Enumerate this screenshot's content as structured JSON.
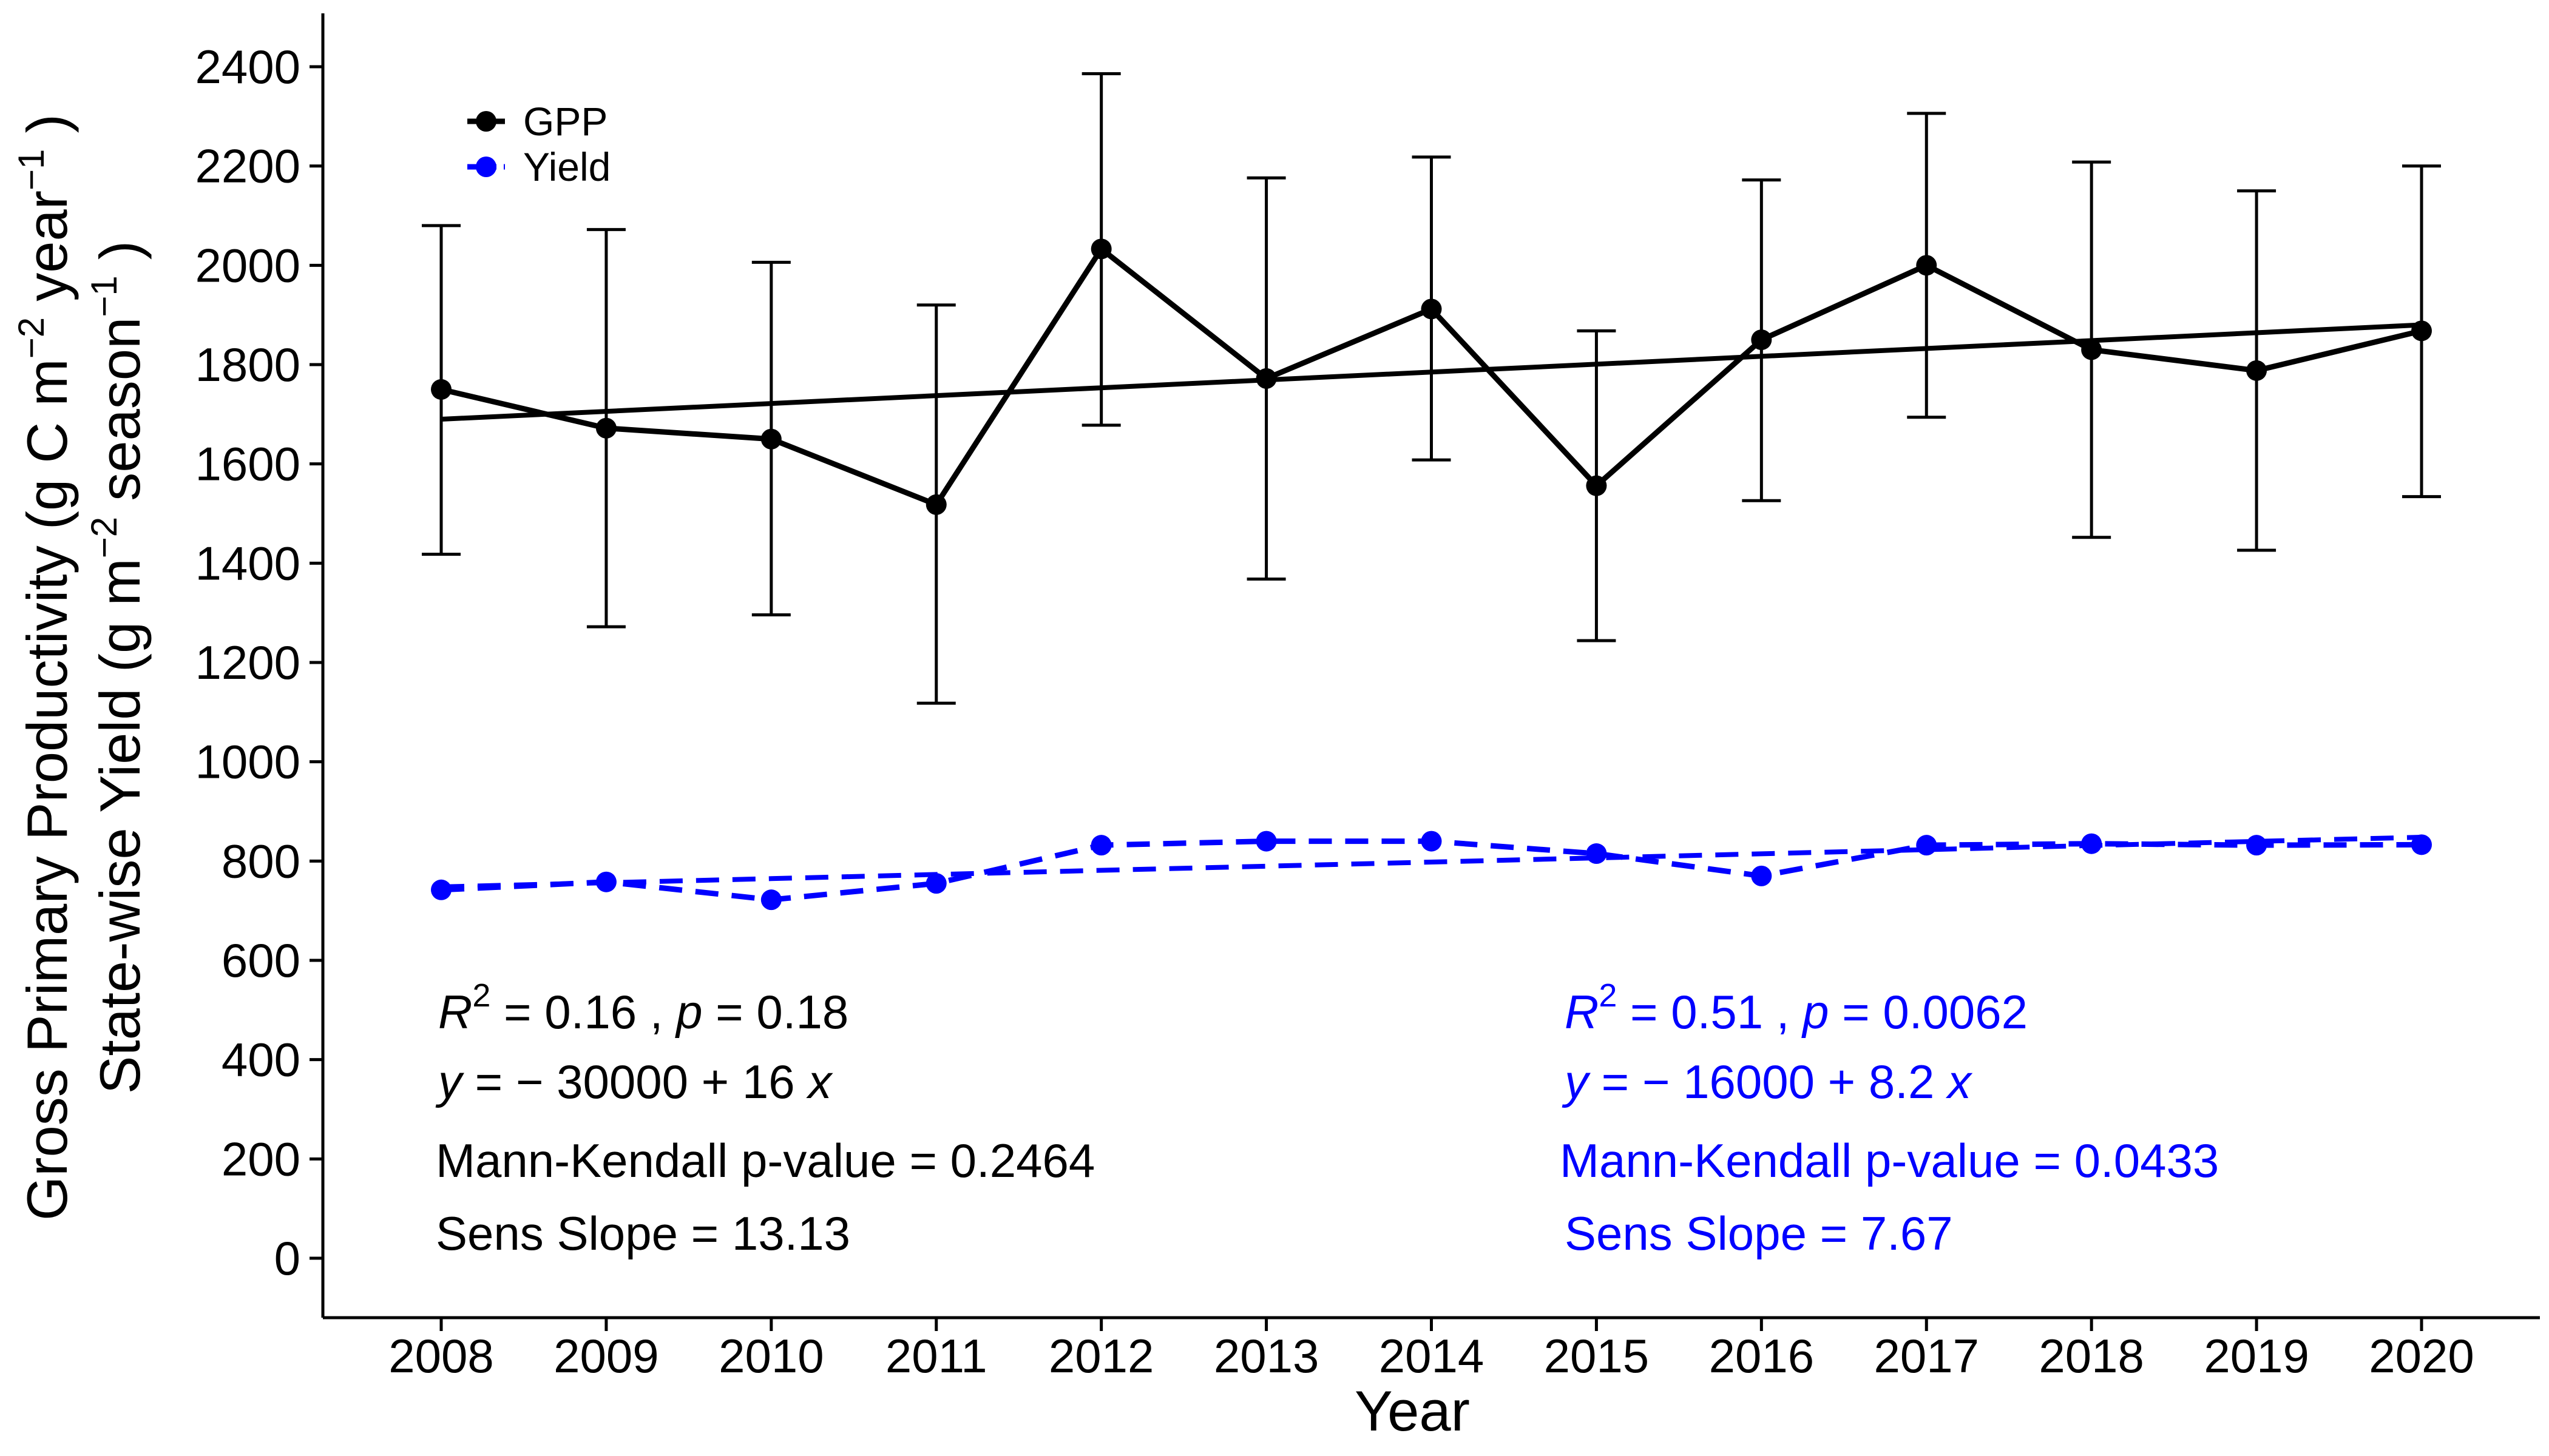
{
  "chart_data": {
    "type": "line",
    "x": [
      2008,
      2009,
      2010,
      2011,
      2012,
      2013,
      2014,
      2015,
      2016,
      2017,
      2018,
      2019,
      2020
    ],
    "xlabel": "Year",
    "ylabel_line1": "Gross Primary Productivity (g C m",
    "ylabel_line1_sup": "−2",
    "ylabel_line1_mid": " year",
    "ylabel_line1_sup2": "−1",
    "ylabel_line1_end": " )",
    "ylabel_line2": "State-wise Yield (g m",
    "ylabel_line2_sup": "−2",
    "ylabel_line2_mid": " season",
    "ylabel_line2_sup2": "−1",
    "ylabel_line2_end": " )",
    "ylim": [
      -120,
      2510
    ],
    "yticks": [
      0,
      200,
      400,
      600,
      800,
      1000,
      1200,
      1400,
      1600,
      1800,
      2000,
      2200,
      2400
    ],
    "grid": false,
    "legend_position": "top-left",
    "series": [
      {
        "name": "GPP",
        "color": "#000000",
        "linestyle": "solid",
        "values": [
          1750,
          1672,
          1650,
          1518,
          2033,
          1772,
          1912,
          1556,
          1850,
          2000,
          1830,
          1788,
          1868
        ],
        "err_low": [
          1418,
          1272,
          1296,
          1118,
          1678,
          1368,
          1608,
          1244,
          1526,
          1694,
          1452,
          1426,
          1534
        ],
        "err_high": [
          2080,
          2072,
          2006,
          1920,
          2386,
          2176,
          2218,
          1868,
          2172,
          2306,
          2208,
          2150,
          2200
        ],
        "trend": [
          1690,
          1880
        ]
      },
      {
        "name": "Yield",
        "color": "#0000ff",
        "linestyle": "dashed",
        "values": [
          742,
          758,
          722,
          755,
          832,
          840,
          840,
          815,
          770,
          832,
          835,
          832,
          833
        ],
        "trend": [
          748,
          848
        ]
      }
    ],
    "annotations": {
      "gpp": {
        "r2_label": "R",
        "r2_sup": "2",
        "r2_rest": " = 0.16 , ",
        "p_label": "p",
        "p_rest": " = 0.18",
        "eq_y": "y",
        "eq_mid": " = − 30000 + 16 ",
        "eq_x": "x",
        "mk": "Mann-Kendall p-value = 0.2464",
        "sens": "Sens Slope = 13.13"
      },
      "yield": {
        "r2_label": "R",
        "r2_sup": "2",
        "r2_rest": " = 0.51 , ",
        "p_label": "p",
        "p_rest": " = 0.0062",
        "eq_y": "y",
        "eq_mid": " = − 16000 + 8.2 ",
        "eq_x": "x",
        "mk": "Mann-Kendall p-value = 0.0433",
        "sens": "Sens Slope = 7.67"
      }
    }
  }
}
